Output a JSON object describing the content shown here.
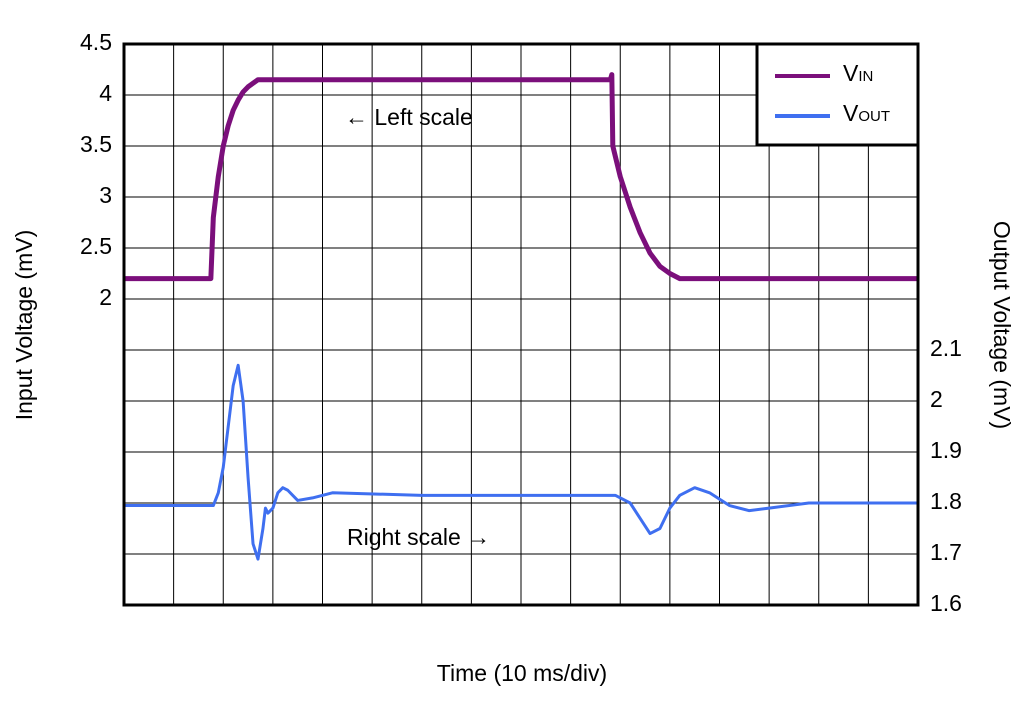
{
  "chart_data": {
    "type": "line",
    "xlabel": "Time (10 ms/div)",
    "ylabel": "Input Voltage (mV)",
    "y2label": "Output Voltage (mV)",
    "annotations": [
      "← Left scale",
      "Right scale →"
    ],
    "xlim": [
      0,
      160
    ],
    "xticks": [
      0,
      10,
      20,
      30,
      40,
      50,
      60,
      70,
      80,
      90,
      100,
      110,
      120,
      130,
      140,
      150,
      160
    ],
    "ylim": [
      -1,
      4.5
    ],
    "yticks": [
      2,
      2.5,
      3,
      3.5,
      4,
      4.5
    ],
    "y2lim": [
      1.6,
      2.7
    ],
    "y2ticks": [
      1.6,
      1.7,
      1.8,
      1.9,
      2,
      2.1
    ],
    "grid": true,
    "legend": "upper right",
    "series": [
      {
        "name": "VIN",
        "color": "#7b0f7b",
        "x": [
          0,
          17.5,
          18,
          19,
          20,
          21,
          22,
          23,
          24,
          25,
          27,
          98,
          98.3,
          98.5,
          100,
          102,
          104,
          106,
          108,
          110,
          112,
          160
        ],
        "values": [
          2.2,
          2.2,
          2.8,
          3.2,
          3.5,
          3.7,
          3.85,
          3.95,
          4.03,
          4.08,
          4.15,
          4.15,
          4.2,
          3.5,
          3.2,
          2.9,
          2.65,
          2.45,
          2.32,
          2.25,
          2.2,
          2.2
        ]
      },
      {
        "name": "VOUT",
        "color": "#3f6ff0",
        "axis": "y2",
        "x": [
          0,
          18,
          19,
          20,
          21,
          22,
          23,
          24,
          25,
          26,
          27,
          28,
          28.5,
          29,
          30,
          31,
          32,
          33,
          35,
          38,
          42,
          60,
          80,
          99,
          102,
          104,
          106,
          108,
          110,
          112,
          115,
          118,
          122,
          126,
          130,
          138,
          160
        ],
        "values": [
          1.795,
          1.795,
          1.82,
          1.87,
          1.95,
          2.03,
          2.07,
          2.0,
          1.85,
          1.72,
          1.69,
          1.75,
          1.79,
          1.78,
          1.79,
          1.82,
          1.83,
          1.825,
          1.805,
          1.81,
          1.82,
          1.815,
          1.815,
          1.815,
          1.8,
          1.77,
          1.74,
          1.75,
          1.79,
          1.815,
          1.83,
          1.82,
          1.795,
          1.785,
          1.79,
          1.8,
          1.8
        ]
      }
    ]
  }
}
